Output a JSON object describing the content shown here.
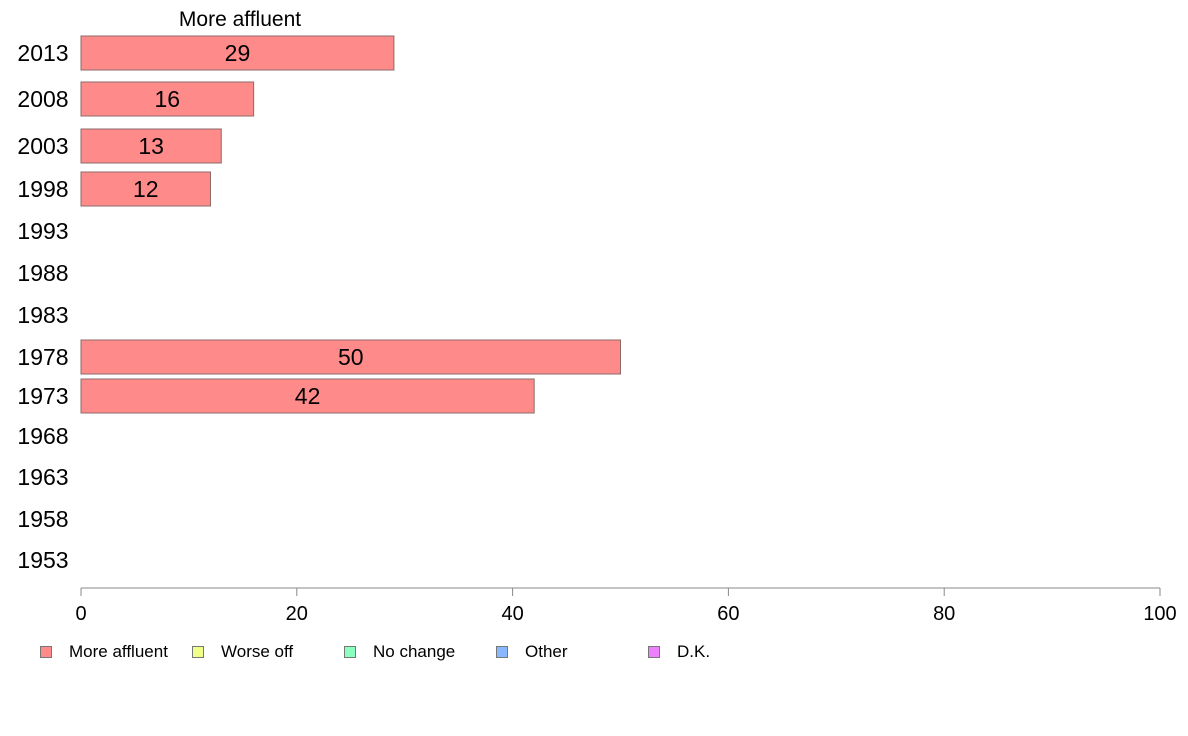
{
  "chart_data": {
    "type": "bar",
    "orientation": "horizontal",
    "title": "More affluent",
    "categories": [
      "2013",
      "2008",
      "2003",
      "1998",
      "1993",
      "1988",
      "1983",
      "1978",
      "1973",
      "1968",
      "1963",
      "1958",
      "1953"
    ],
    "series": [
      {
        "name": "More affluent",
        "color": "#ff8a8a",
        "values": [
          29,
          16,
          13,
          12,
          null,
          null,
          null,
          50,
          42,
          null,
          null,
          null,
          null
        ]
      }
    ],
    "data_labels": [
      "29",
      "16",
      "13",
      "12",
      "",
      "",
      "",
      "50",
      "42",
      "",
      "",
      "",
      ""
    ],
    "xlim": [
      0,
      100
    ],
    "xticks": [
      0,
      20,
      40,
      60,
      80,
      100
    ],
    "xlabel": "",
    "ylabel": "",
    "grid": false,
    "legend_position": "bottom-left"
  },
  "legend": [
    {
      "label": "More affluent",
      "color": "#ff8a8a"
    },
    {
      "label": "Worse off",
      "color": "#efff8a"
    },
    {
      "label": "No change",
      "color": "#8affc0"
    },
    {
      "label": "Other",
      "color": "#8ab8ff"
    },
    {
      "label": "D.K.",
      "color": "#ee80ff"
    }
  ]
}
